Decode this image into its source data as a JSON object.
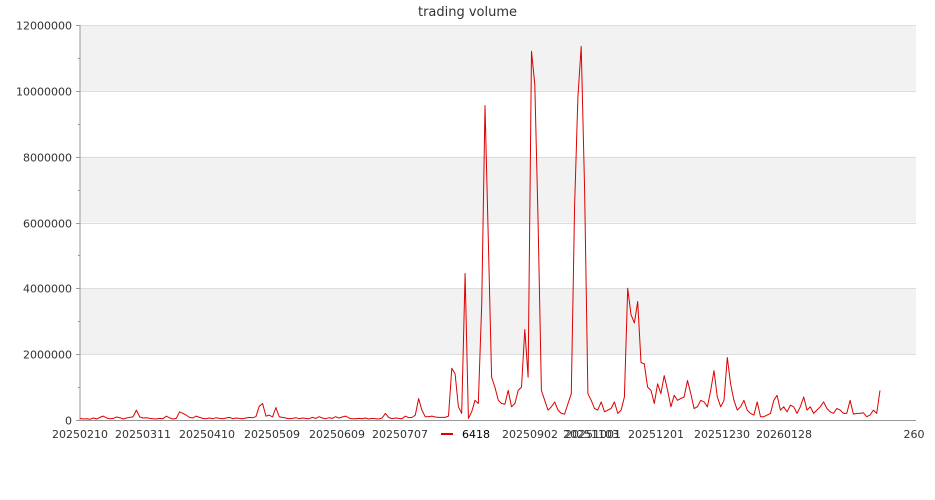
{
  "chart_data": {
    "type": "line",
    "title": "trading volume",
    "xlabel": "",
    "ylabel": "",
    "ylim": [
      0,
      12000000
    ],
    "yticks": [
      "0",
      "2000000",
      "4000000",
      "6000000",
      "8000000",
      "10000000",
      "12000000"
    ],
    "xticks": [
      "20250210",
      "20250311",
      "20250410",
      "20250509",
      "20250609",
      "20250707",
      "20250902",
      "20251001",
      "20251103",
      "20251201",
      "20251230",
      "20260128",
      "260"
    ],
    "grid": "horizontal bands",
    "legend": {
      "placement": "bottom-center",
      "entries": [
        "6418"
      ]
    },
    "series": [
      {
        "name": "6418",
        "color": "#dd0000",
        "values": [
          50000,
          30000,
          40000,
          20000,
          60000,
          30000,
          80000,
          120000,
          60000,
          40000,
          50000,
          90000,
          70000,
          30000,
          60000,
          80000,
          100000,
          300000,
          90000,
          60000,
          70000,
          50000,
          40000,
          30000,
          50000,
          40000,
          120000,
          60000,
          30000,
          50000,
          250000,
          200000,
          150000,
          80000,
          60000,
          120000,
          80000,
          50000,
          40000,
          60000,
          40000,
          70000,
          50000,
          40000,
          60000,
          80000,
          40000,
          60000,
          50000,
          40000,
          60000,
          80000,
          70000,
          100000,
          420000,
          500000,
          120000,
          150000,
          90000,
          380000,
          100000,
          80000,
          60000,
          40000,
          50000,
          70000,
          40000,
          60000,
          50000,
          40000,
          80000,
          50000,
          100000,
          60000,
          40000,
          70000,
          50000,
          100000,
          60000,
          90000,
          120000,
          60000,
          40000,
          40000,
          50000,
          40000,
          60000,
          30000,
          50000,
          40000,
          30000,
          60000,
          200000,
          80000,
          40000,
          60000,
          50000,
          40000,
          120000,
          70000,
          80000,
          150000,
          650000,
          300000,
          100000,
          100000,
          120000,
          90000,
          80000,
          80000,
          80000,
          120000,
          1570000,
          1400000,
          400000,
          200000,
          4450000,
          50000,
          250000,
          600000,
          500000,
          3500000,
          9550000,
          5500000,
          1300000,
          1000000,
          600000,
          500000,
          480000,
          900000,
          400000,
          500000,
          900000,
          1000000,
          2750000,
          1300000,
          11200000,
          10200000,
          6000000,
          900000,
          600000,
          300000,
          400000,
          550000,
          300000,
          200000,
          180000,
          500000,
          800000,
          6500000,
          9800000,
          11350000,
          7000000,
          800000,
          600000,
          350000,
          300000,
          550000,
          250000,
          300000,
          350000,
          550000,
          200000,
          300000,
          700000,
          4000000,
          3200000,
          2950000,
          3600000,
          1750000,
          1700000,
          1000000,
          900000,
          500000,
          1100000,
          800000,
          1350000,
          900000,
          400000,
          750000,
          600000,
          650000,
          700000,
          1200000,
          800000,
          350000,
          400000,
          600000,
          550000,
          400000,
          900000,
          1500000,
          700000,
          400000,
          600000,
          1900000,
          1100000,
          600000,
          300000,
          400000,
          600000,
          300000,
          200000,
          150000,
          550000,
          100000,
          100000,
          150000,
          200000,
          600000,
          750000,
          300000,
          400000,
          250000,
          450000,
          400000,
          200000,
          400000,
          700000,
          300000,
          400000,
          200000,
          300000,
          400000,
          550000,
          350000,
          250000,
          200000,
          350000,
          300000,
          200000,
          200000,
          600000,
          180000,
          200000,
          200000,
          220000,
          100000,
          150000,
          300000,
          200000,
          900000
        ]
      }
    ]
  }
}
